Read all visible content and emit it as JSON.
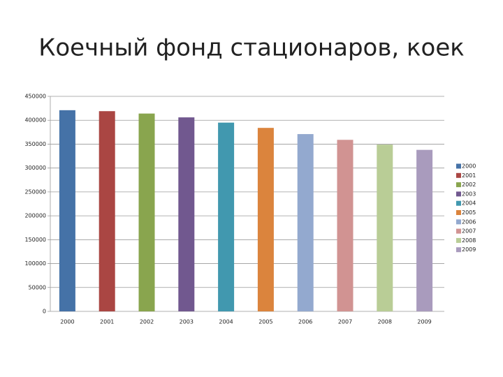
{
  "chart_data": {
    "type": "bar",
    "title": "Коечный фонд стационаров, коек",
    "categories": [
      "2000",
      "2001",
      "2002",
      "2003",
      "2004",
      "2005",
      "2006",
      "2007",
      "2008",
      "2009"
    ],
    "values": [
      421000,
      419000,
      414000,
      406000,
      395000,
      384000,
      371000,
      359000,
      349000,
      338000
    ],
    "colors": [
      "#4572A7",
      "#AA4643",
      "#89A54E",
      "#71588F",
      "#4198AF",
      "#DB843D",
      "#93A9CF",
      "#D19392",
      "#B9CD96",
      "#A99BBD"
    ],
    "ylim": [
      0,
      450000
    ],
    "yticks": [
      0,
      50000,
      100000,
      150000,
      200000,
      250000,
      300000,
      350000,
      400000,
      450000
    ],
    "grid": true,
    "legend": "right"
  }
}
